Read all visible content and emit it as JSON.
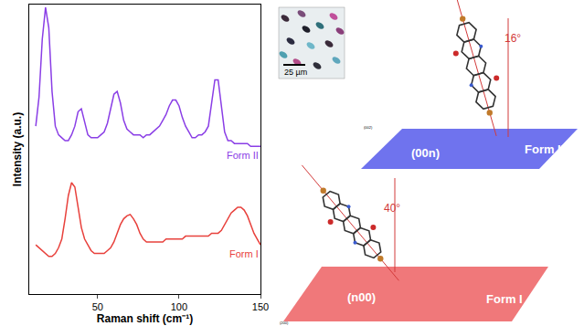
{
  "chart_data": {
    "type": "line",
    "x_label": "Raman shift (cm⁻¹)",
    "y_label": "Intensity (a.u.)",
    "xlim": [
      8,
      150
    ],
    "xticks": [
      50,
      100,
      150
    ],
    "ylim": [
      0,
      10
    ],
    "tick_labels": "x",
    "grid": false,
    "x": [
      12,
      14,
      16,
      18,
      20,
      22,
      24,
      26,
      28,
      30,
      32,
      34,
      36,
      38,
      40,
      42,
      44,
      46,
      48,
      50,
      52,
      54,
      56,
      58,
      60,
      62,
      64,
      66,
      68,
      70,
      72,
      74,
      76,
      78,
      80,
      82,
      84,
      86,
      88,
      90,
      92,
      94,
      96,
      98,
      100,
      102,
      104,
      106,
      108,
      110,
      112,
      114,
      116,
      118,
      120,
      122,
      124,
      126,
      128,
      130,
      132,
      134,
      136,
      138,
      140,
      142,
      144,
      146,
      148,
      150
    ],
    "series": [
      {
        "name": "Form II",
        "color": "#8a3ee6",
        "values": [
          5.8,
          6.8,
          8.8,
          9.9,
          9.2,
          7.0,
          5.8,
          5.5,
          5.4,
          5.3,
          5.3,
          5.5,
          5.8,
          6.3,
          6.4,
          5.9,
          5.5,
          5.4,
          5.4,
          5.4,
          5.5,
          5.6,
          5.9,
          6.4,
          6.9,
          7.0,
          6.6,
          6.0,
          5.7,
          5.6,
          5.5,
          5.5,
          5.5,
          5.4,
          5.5,
          5.5,
          5.6,
          5.7,
          5.8,
          6.0,
          6.2,
          6.5,
          6.7,
          6.7,
          6.5,
          6.1,
          5.8,
          5.6,
          5.4,
          5.4,
          5.5,
          5.5,
          5.6,
          5.8,
          6.6,
          7.4,
          7.4,
          6.5,
          5.6,
          5.3,
          5.3,
          5.2,
          5.2,
          5.2,
          5.2,
          5.2,
          5.1,
          5.1,
          5.1,
          5.1
        ]
      },
      {
        "name": "Form I",
        "color": "#e8413c",
        "values": [
          1.7,
          1.6,
          1.5,
          1.4,
          1.3,
          1.3,
          1.4,
          1.6,
          1.9,
          2.6,
          3.4,
          3.85,
          3.7,
          3.0,
          2.3,
          1.9,
          1.7,
          1.5,
          1.4,
          1.4,
          1.4,
          1.4,
          1.5,
          1.6,
          1.8,
          2.1,
          2.4,
          2.6,
          2.7,
          2.75,
          2.6,
          2.4,
          2.1,
          1.9,
          1.8,
          1.8,
          1.8,
          1.8,
          1.8,
          1.8,
          1.9,
          1.9,
          1.9,
          1.9,
          1.9,
          1.9,
          2.0,
          2.0,
          2.0,
          2.0,
          2.0,
          2.0,
          2.0,
          2.0,
          2.1,
          2.1,
          2.1,
          2.2,
          2.4,
          2.6,
          2.8,
          2.9,
          3.0,
          3.0,
          2.9,
          2.7,
          2.4,
          2.1,
          1.9,
          1.7
        ]
      }
    ]
  },
  "micrograph": {
    "scale_bar": "25 µm"
  },
  "molecules": [
    {
      "form": "Form II",
      "plane": "(00n)",
      "angle": "16°",
      "reflection": "(002)"
    },
    {
      "form": "Form I",
      "plane": "(n00)",
      "angle": "40°",
      "reflection": "(200)"
    }
  ]
}
